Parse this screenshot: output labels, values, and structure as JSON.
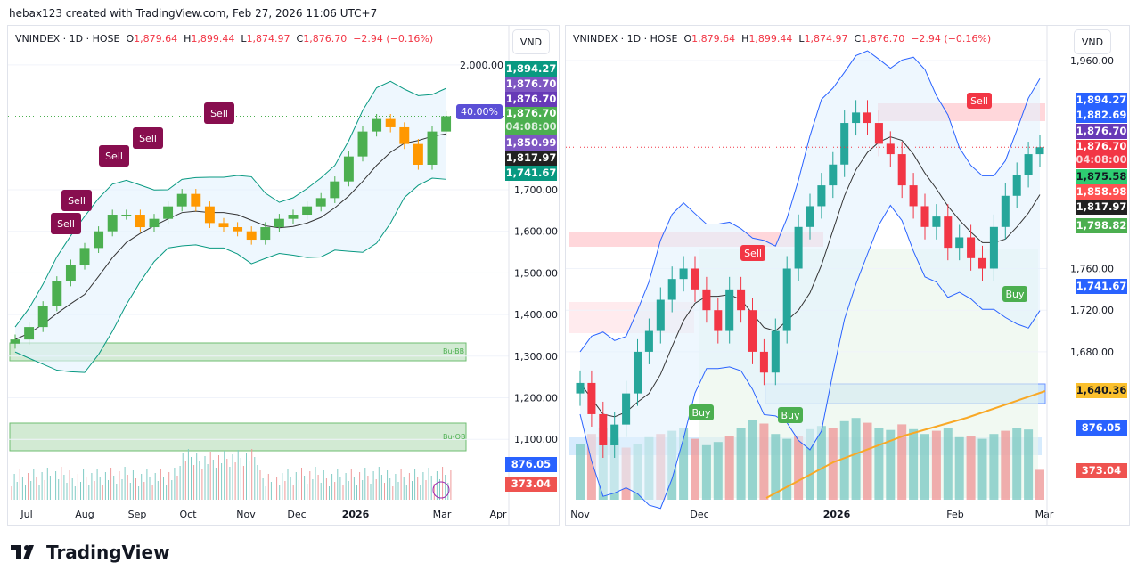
{
  "credit": "hebax123 created with TradingView.com, Feb 27, 2026 11:06 UTC+7",
  "legend": {
    "symbol": "VNINDEX · 1D · HOSE",
    "o_label": "O",
    "o": "1,879.64",
    "h_label": "H",
    "h": "1,899.44",
    "l_label": "L",
    "l": "1,874.97",
    "c_label": "C",
    "c": "1,876.70",
    "change": "−2.94 (−0.16%)"
  },
  "currency": "VND",
  "logo": "TradingView",
  "colors": {
    "up": "#26a69a",
    "down": "#ef5350",
    "green_candle": "#4caf50",
    "blue_candle": "#2962ff",
    "purple": "#673ab7"
  },
  "left": {
    "price_labels": [
      {
        "t": "1,894.27",
        "c": "#089981"
      },
      {
        "t": "1,876.70",
        "c": "#7e57c2"
      },
      {
        "t": "1,876.70",
        "c": "#673ab7"
      },
      {
        "t": "1,876.70",
        "sub": "04:08:00",
        "c": "#4caf50"
      },
      {
        "t": "1,850.99",
        "c": "#7e57c2"
      },
      {
        "t": "1,817.97",
        "c": "#212121"
      },
      {
        "t": "1,741.67",
        "c": "#089981"
      }
    ],
    "vol_labels": [
      {
        "t": "876.05 M",
        "c": "#2962ff"
      },
      {
        "t": "373.04 M",
        "c": "#ef5350"
      }
    ],
    "percent_tag": "40.00%",
    "zones": [
      "Bu-BB",
      "Bu-OB"
    ],
    "signals": [
      "Sell",
      "Sell",
      "Sell",
      "Sell",
      "Sell",
      "Sell"
    ]
  },
  "right": {
    "price_labels": [
      {
        "t": "1,894.27",
        "c": "#2962ff"
      },
      {
        "t": "1,882.69",
        "c": "#2962ff"
      },
      {
        "t": "1,876.70",
        "c": "#673ab7"
      },
      {
        "t": "1,876.70",
        "sub": "04:08:00",
        "c": "#f23645"
      },
      {
        "t": "1,875.58",
        "c": "#2ecc71",
        "dark": true
      },
      {
        "t": "1,858.98",
        "c": "#ff5252"
      },
      {
        "t": "1,817.97",
        "c": "#212121"
      },
      {
        "t": "1,798.82",
        "c": "#4caf50"
      },
      {
        "t": "1,741.67",
        "c": "#2962ff"
      },
      {
        "t": "1,640.36",
        "c": "#fbc02d",
        "dark": true
      },
      {
        "t": "876.05 M",
        "c": "#2962ff"
      },
      {
        "t": "373.04 M",
        "c": "#ef5350"
      }
    ],
    "signals": [
      "Sell",
      "Sell",
      "Buy",
      "Buy",
      "Buy"
    ]
  },
  "chart_data": [
    {
      "type": "candlestick",
      "title": "VNINDEX · 1D · HOSE",
      "xlabel": "",
      "ylabel": "",
      "x_ticks": [
        "Jul",
        "Aug",
        "Sep",
        "Oct",
        "Nov",
        "Dec",
        "2026",
        "Mar",
        "Apr"
      ],
      "y_ticks": [
        "2,000.00",
        "1,700.00",
        "1,600.00",
        "1,500.00",
        "1,400.00",
        "1,300.00",
        "1,200.00",
        "1,100.00"
      ],
      "ylim": [
        1050,
        2000
      ],
      "closes_weekly": [
        1340,
        1370,
        1420,
        1480,
        1520,
        1560,
        1600,
        1640,
        1640,
        1610,
        1630,
        1660,
        1690,
        1660,
        1620,
        1610,
        1600,
        1580,
        1610,
        1630,
        1640,
        1660,
        1680,
        1720,
        1780,
        1840,
        1870,
        1850,
        1810,
        1760,
        1840,
        1876.7
      ]
    },
    {
      "type": "candlestick",
      "title": "VNINDEX · 1D · HOSE",
      "xlabel": "",
      "ylabel": "",
      "x_ticks": [
        "Nov",
        "Dec",
        "2026",
        "Feb",
        "Mar"
      ],
      "y_ticks": [
        "1,960.00",
        "1,760.00",
        "1,720.00",
        "1,680.00"
      ],
      "ylim": [
        1540,
        1975
      ],
      "closes": [
        1650,
        1620,
        1590,
        1610,
        1640,
        1680,
        1700,
        1730,
        1750,
        1760,
        1740,
        1720,
        1700,
        1740,
        1720,
        1680,
        1660,
        1700,
        1760,
        1800,
        1820,
        1840,
        1860,
        1900,
        1910,
        1900,
        1880,
        1870,
        1840,
        1820,
        1800,
        1810,
        1780,
        1790,
        1770,
        1760,
        1800,
        1830,
        1850,
        1870,
        1876.7
      ],
      "volumes_m": [
        700,
        820,
        900,
        760,
        650,
        700,
        780,
        820,
        860,
        900,
        760,
        680,
        720,
        800,
        900,
        1000,
        950,
        820,
        760,
        800,
        880,
        920,
        900,
        980,
        1020,
        960,
        900,
        870,
        940,
        880,
        820,
        860,
        900,
        780,
        800,
        760,
        820,
        860,
        900,
        876,
        373
      ]
    }
  ]
}
